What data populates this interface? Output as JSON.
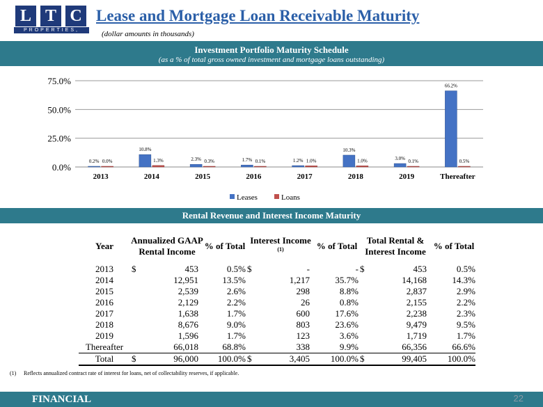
{
  "header": {
    "logo_letters": [
      "L",
      "T",
      "C"
    ],
    "logo_subtitle": "PROPERTIES, INC.",
    "title": "Lease and Mortgage Loan Receivable Maturity",
    "subtitle": "(dollar amounts in thousands)"
  },
  "chart_band": {
    "title": "Investment Portfolio Maturity Schedule",
    "subtitle": "(as a % of total gross owned investment and mortgage loans outstanding)"
  },
  "chart_data": {
    "type": "bar",
    "categories": [
      "2013",
      "2014",
      "2015",
      "2016",
      "2017",
      "2018",
      "2019",
      "Thereafter"
    ],
    "series": [
      {
        "name": "Leases",
        "values": [
          0.2,
          10.8,
          2.3,
          1.7,
          1.2,
          10.3,
          3.0,
          66.2
        ],
        "labels": [
          "0.2%",
          "10.8%",
          "2.3%",
          "1.7%",
          "1.2%",
          "10.3%",
          "3.0%",
          "66.2%"
        ],
        "color": "#4472c4"
      },
      {
        "name": "Loans",
        "values": [
          0.0,
          1.3,
          0.3,
          0.1,
          1.0,
          1.0,
          0.1,
          0.5
        ],
        "labels": [
          "0.0%",
          "1.3%",
          "0.3%",
          "0.1%",
          "1.0%",
          "1.0%",
          "0.1%",
          "0.5%"
        ],
        "color": "#c0504d"
      }
    ],
    "y_ticks": [
      "0.0%",
      "25.0%",
      "50.0%",
      "75.0%"
    ],
    "ylim": [
      0,
      75
    ],
    "grid": true,
    "legend": "bottom-center"
  },
  "table_band": {
    "title": "Rental Revenue and Interest Income Maturity"
  },
  "table": {
    "headers": {
      "year": "Year",
      "rental": "Annualized GAAP Rental Income",
      "pct1": "% of Total",
      "interest": "Interest Income",
      "interest_sup": "(1)",
      "pct2": "% of Total",
      "total": "Total Rental & Interest Income",
      "pct3": "% of Total"
    },
    "rows": [
      {
        "year": "2013",
        "r_sym": "$",
        "rental": "453",
        "p1": "0.5%",
        "i_sym": "$",
        "interest": "-",
        "p2": "-",
        "t_sym": "$",
        "total": "453",
        "p3": "0.5%"
      },
      {
        "year": "2014",
        "r_sym": "",
        "rental": "12,951",
        "p1": "13.5%",
        "i_sym": "",
        "interest": "1,217",
        "p2": "35.7%",
        "t_sym": "",
        "total": "14,168",
        "p3": "14.3%"
      },
      {
        "year": "2015",
        "r_sym": "",
        "rental": "2,539",
        "p1": "2.6%",
        "i_sym": "",
        "interest": "298",
        "p2": "8.8%",
        "t_sym": "",
        "total": "2,837",
        "p3": "2.9%"
      },
      {
        "year": "2016",
        "r_sym": "",
        "rental": "2,129",
        "p1": "2.2%",
        "i_sym": "",
        "interest": "26",
        "p2": "0.8%",
        "t_sym": "",
        "total": "2,155",
        "p3": "2.2%"
      },
      {
        "year": "2017",
        "r_sym": "",
        "rental": "1,638",
        "p1": "1.7%",
        "i_sym": "",
        "interest": "600",
        "p2": "17.6%",
        "t_sym": "",
        "total": "2,238",
        "p3": "2.3%"
      },
      {
        "year": "2018",
        "r_sym": "",
        "rental": "8,676",
        "p1": "9.0%",
        "i_sym": "",
        "interest": "803",
        "p2": "23.6%",
        "t_sym": "",
        "total": "9,479",
        "p3": "9.5%"
      },
      {
        "year": "2019",
        "r_sym": "",
        "rental": "1,596",
        "p1": "1.7%",
        "i_sym": "",
        "interest": "123",
        "p2": "3.6%",
        "t_sym": "",
        "total": "1,719",
        "p3": "1.7%"
      },
      {
        "year": "Thereafter",
        "r_sym": "",
        "rental": "66,018",
        "p1": "68.8%",
        "i_sym": "",
        "interest": "338",
        "p2": "9.9%",
        "t_sym": "",
        "total": "66,356",
        "p3": "66.6%"
      }
    ],
    "total_row": {
      "year": "Total",
      "r_sym": "$",
      "rental": "96,000",
      "p1": "100.0%",
      "i_sym": "$",
      "interest": "3,405",
      "p2": "100.0%",
      "t_sym": "$",
      "total": "99,405",
      "p3": "100.0%"
    }
  },
  "footnote": {
    "number": "(1)",
    "text": "Reflects annualized contract rate of interest for loans, net of collectability reserves, if applicable."
  },
  "footer": {
    "label": "FINANCIAL",
    "page_number": "22"
  }
}
